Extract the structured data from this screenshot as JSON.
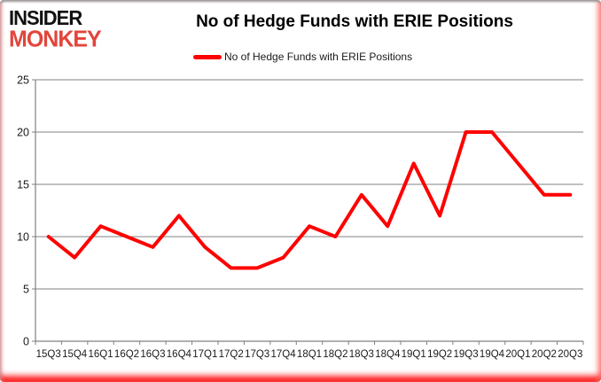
{
  "logo": {
    "line1": "INSIDER",
    "line2": "MONKEY"
  },
  "header": {
    "title": "No of Hedge Funds with ERIE Positions"
  },
  "legend": {
    "label": "No of Hedge Funds with ERIE Positions",
    "swatch_color": "#FF0000"
  },
  "colors": {
    "series_red": "#FF0000",
    "logo_black": "#111111",
    "logo_red": "#E2453C",
    "gridline": "#808080",
    "axis": "#808080",
    "tick_label": "#1A1A1A",
    "frame_glow_bottom": "#FF0000"
  },
  "chart_data": {
    "type": "line",
    "title": "No of Hedge Funds with ERIE Positions",
    "categories": [
      "15Q3",
      "15Q4",
      "16Q1",
      "16Q2",
      "16Q3",
      "16Q4",
      "17Q1",
      "17Q2",
      "17Q3",
      "17Q4",
      "18Q1",
      "18Q2",
      "18Q3",
      "18Q4",
      "19Q1",
      "19Q2",
      "19Q3",
      "19Q4",
      "20Q1",
      "20Q2",
      "20Q3"
    ],
    "series": [
      {
        "name": "No of Hedge Funds with ERIE Positions",
        "color": "#FF0000",
        "values": [
          10,
          8,
          11,
          10,
          9,
          12,
          9,
          7,
          7,
          8,
          11,
          10,
          14,
          11,
          17,
          12,
          20,
          20,
          17,
          14,
          14
        ]
      }
    ],
    "xlabel": "",
    "ylabel": "",
    "ylim": [
      0,
      25
    ],
    "yticks": [
      0,
      5,
      10,
      15,
      20,
      25
    ],
    "grid": "horizontal",
    "legend_position": "top"
  }
}
